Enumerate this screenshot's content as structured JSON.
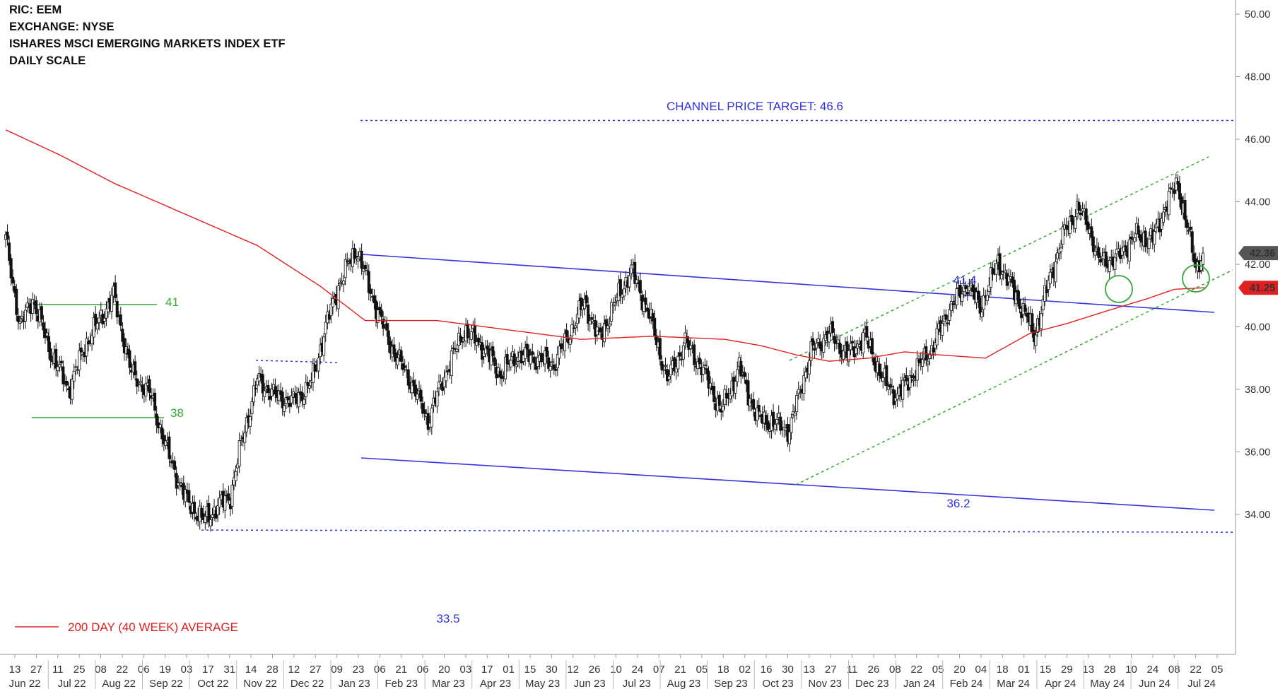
{
  "header": {
    "ric": "RIC: EEM",
    "exchange": "EXCHANGE: NYSE",
    "name": "ISHARES MSCI EMERGING MARKETS INDEX ETF",
    "scale": "DAILY SCALE"
  },
  "legend": {
    "label": "200 DAY (40 WEEK) AVERAGE",
    "color": "#e02020"
  },
  "chart_data": {
    "type": "candlestick",
    "ylim": [
      32.0,
      50.4
    ],
    "y_ticks": [
      "34.00",
      "36.00",
      "38.00",
      "40.00",
      "42.00",
      "44.00",
      "46.00",
      "48.00",
      "50.00"
    ],
    "x_day_ticks": [
      "13",
      "27",
      "11",
      "25",
      "08",
      "22",
      "06",
      "19",
      "03",
      "17",
      "31",
      "14",
      "28",
      "12",
      "27",
      "09",
      "23",
      "06",
      "21",
      "06",
      "20",
      "03",
      "17",
      "01",
      "15",
      "30",
      "12",
      "26",
      "10",
      "24",
      "07",
      "21",
      "05",
      "18",
      "02",
      "16",
      "30",
      "13",
      "27",
      "11",
      "26",
      "08",
      "22",
      "05",
      "20",
      "04",
      "18",
      "01",
      "15",
      "29",
      "13",
      "28",
      "10",
      "24",
      "08",
      "22",
      "05"
    ],
    "x_month_labels": [
      "Jun 22",
      "Jul 22",
      "Aug 22",
      "Sep 22",
      "Oct 22",
      "Nov 22",
      "Dec 22",
      "Jan 23",
      "Feb 23",
      "Mar 23",
      "Apr 23",
      "May 23",
      "Jun 23",
      "Jul 23",
      "Aug 23",
      "Sep 23",
      "Oct 23",
      "Nov 23",
      "Dec 23",
      "Jan 24",
      "Feb 24",
      "Mar 24",
      "Apr 24",
      "May 24",
      "Jun 24",
      "Jul 24"
    ],
    "price_series": {
      "name": "EEM",
      "bar_count": 540,
      "anchors": [
        [
          0,
          42.8
        ],
        [
          8,
          40.0
        ],
        [
          15,
          40.9
        ],
        [
          25,
          39.2
        ],
        [
          35,
          38.0
        ],
        [
          45,
          39.5
        ],
        [
          60,
          41.0
        ],
        [
          70,
          38.5
        ],
        [
          80,
          37.9
        ],
        [
          90,
          36.0
        ],
        [
          100,
          34.5
        ],
        [
          110,
          33.8
        ],
        [
          117,
          34.2
        ],
        [
          125,
          34.6
        ],
        [
          132,
          36.5
        ],
        [
          140,
          38.3
        ],
        [
          150,
          37.8
        ],
        [
          160,
          37.6
        ],
        [
          170,
          38.2
        ],
        [
          178,
          40.0
        ],
        [
          185,
          41.3
        ],
        [
          195,
          42.5
        ],
        [
          205,
          40.8
        ],
        [
          215,
          39.3
        ],
        [
          225,
          38.3
        ],
        [
          235,
          37.0
        ],
        [
          243,
          38.3
        ],
        [
          255,
          39.9
        ],
        [
          265,
          39.4
        ],
        [
          275,
          38.5
        ],
        [
          285,
          39.1
        ],
        [
          295,
          39.0
        ],
        [
          305,
          38.8
        ],
        [
          312,
          39.6
        ],
        [
          322,
          40.8
        ],
        [
          330,
          39.6
        ],
        [
          340,
          40.9
        ],
        [
          348,
          41.8
        ],
        [
          358,
          40.4
        ],
        [
          368,
          38.3
        ],
        [
          378,
          39.5
        ],
        [
          388,
          38.6
        ],
        [
          398,
          37.3
        ],
        [
          408,
          38.7
        ],
        [
          418,
          37.1
        ],
        [
          428,
          36.9
        ],
        [
          436,
          36.7
        ],
        [
          442,
          38.0
        ],
        [
          448,
          39.2
        ],
        [
          458,
          39.8
        ],
        [
          468,
          39.1
        ],
        [
          478,
          39.7
        ],
        [
          488,
          38.3
        ],
        [
          496,
          37.8
        ],
        [
          506,
          38.6
        ],
        [
          515,
          39.3
        ],
        [
          525,
          40.6
        ],
        [
          535,
          41.4
        ],
        [
          542,
          40.6
        ],
        [
          552,
          42.1
        ],
        [
          562,
          41.0
        ],
        [
          568,
          40.3
        ],
        [
          572,
          39.7
        ],
        [
          580,
          41.4
        ],
        [
          588,
          42.9
        ],
        [
          596,
          43.8
        ],
        [
          602,
          43.3
        ],
        [
          608,
          42.1
        ],
        [
          618,
          42.2
        ],
        [
          628,
          42.9
        ],
        [
          638,
          42.8
        ],
        [
          646,
          44.0
        ],
        [
          652,
          44.6
        ],
        [
          656,
          43.5
        ],
        [
          662,
          41.9
        ],
        [
          666,
          42.36
        ]
      ],
      "last_close": "42.36",
      "ma200_last": "41.25"
    },
    "ma200": {
      "name": "200 DAY (40 WEEK) AVERAGE",
      "anchors": [
        [
          0,
          46.3
        ],
        [
          30,
          45.5
        ],
        [
          60,
          44.6
        ],
        [
          100,
          43.6
        ],
        [
          140,
          42.6
        ],
        [
          175,
          41.3
        ],
        [
          200,
          40.2
        ],
        [
          240,
          40.2
        ],
        [
          280,
          39.9
        ],
        [
          320,
          39.6
        ],
        [
          360,
          39.7
        ],
        [
          400,
          39.6
        ],
        [
          420,
          39.4
        ],
        [
          440,
          39.1
        ],
        [
          458,
          38.9
        ],
        [
          480,
          39.0
        ],
        [
          500,
          39.2
        ],
        [
          520,
          39.1
        ],
        [
          545,
          39.0
        ],
        [
          570,
          39.8
        ],
        [
          590,
          40.1
        ],
        [
          612,
          40.5
        ],
        [
          635,
          40.9
        ],
        [
          650,
          41.2
        ],
        [
          667,
          41.25
        ]
      ]
    },
    "annotations": {
      "target_label": "CHANNEL PRICE TARGET: 46.6",
      "target_value": 46.6,
      "support_low_label": "33.5",
      "support_low_value": 33.5,
      "upper_channel_label": "41.4",
      "lower_channel_label": "36.2",
      "range_top_label": "41",
      "range_bottom_label": "38"
    },
    "colors": {
      "candle": "#111111",
      "channel": "#3333dd",
      "target": "#3333dd",
      "trend_dashed": "#33aa33",
      "range": "#33aa33",
      "ma": "#e02020",
      "last_price_box": "#555555",
      "ma_box": "#e02020"
    },
    "grid": false
  }
}
